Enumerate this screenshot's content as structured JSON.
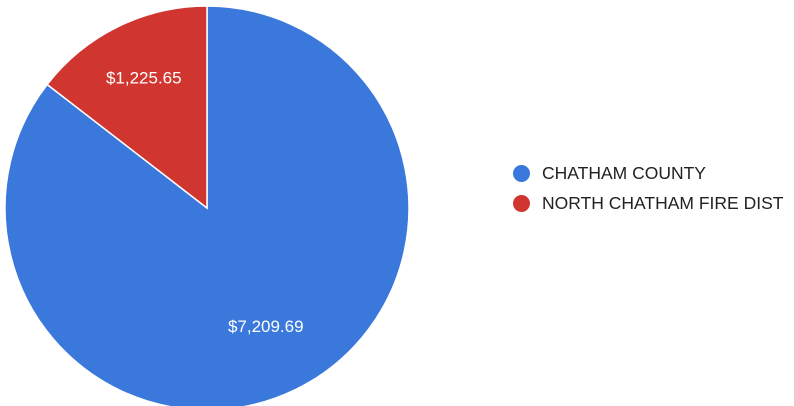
{
  "chart_data": {
    "type": "pie",
    "slices": [
      {
        "label": "CHATHAM COUNTY",
        "value": 7209.69,
        "display": "$7,209.69",
        "color": "#3b78db"
      },
      {
        "label": "NORTH CHATHAM FIRE DIST",
        "value": 1225.65,
        "display": "$1,225.65",
        "color": "#d0362f"
      }
    ],
    "start": "12 o'clock",
    "direction": "counter-clockwise for the smaller slice",
    "legend_position": "right"
  }
}
